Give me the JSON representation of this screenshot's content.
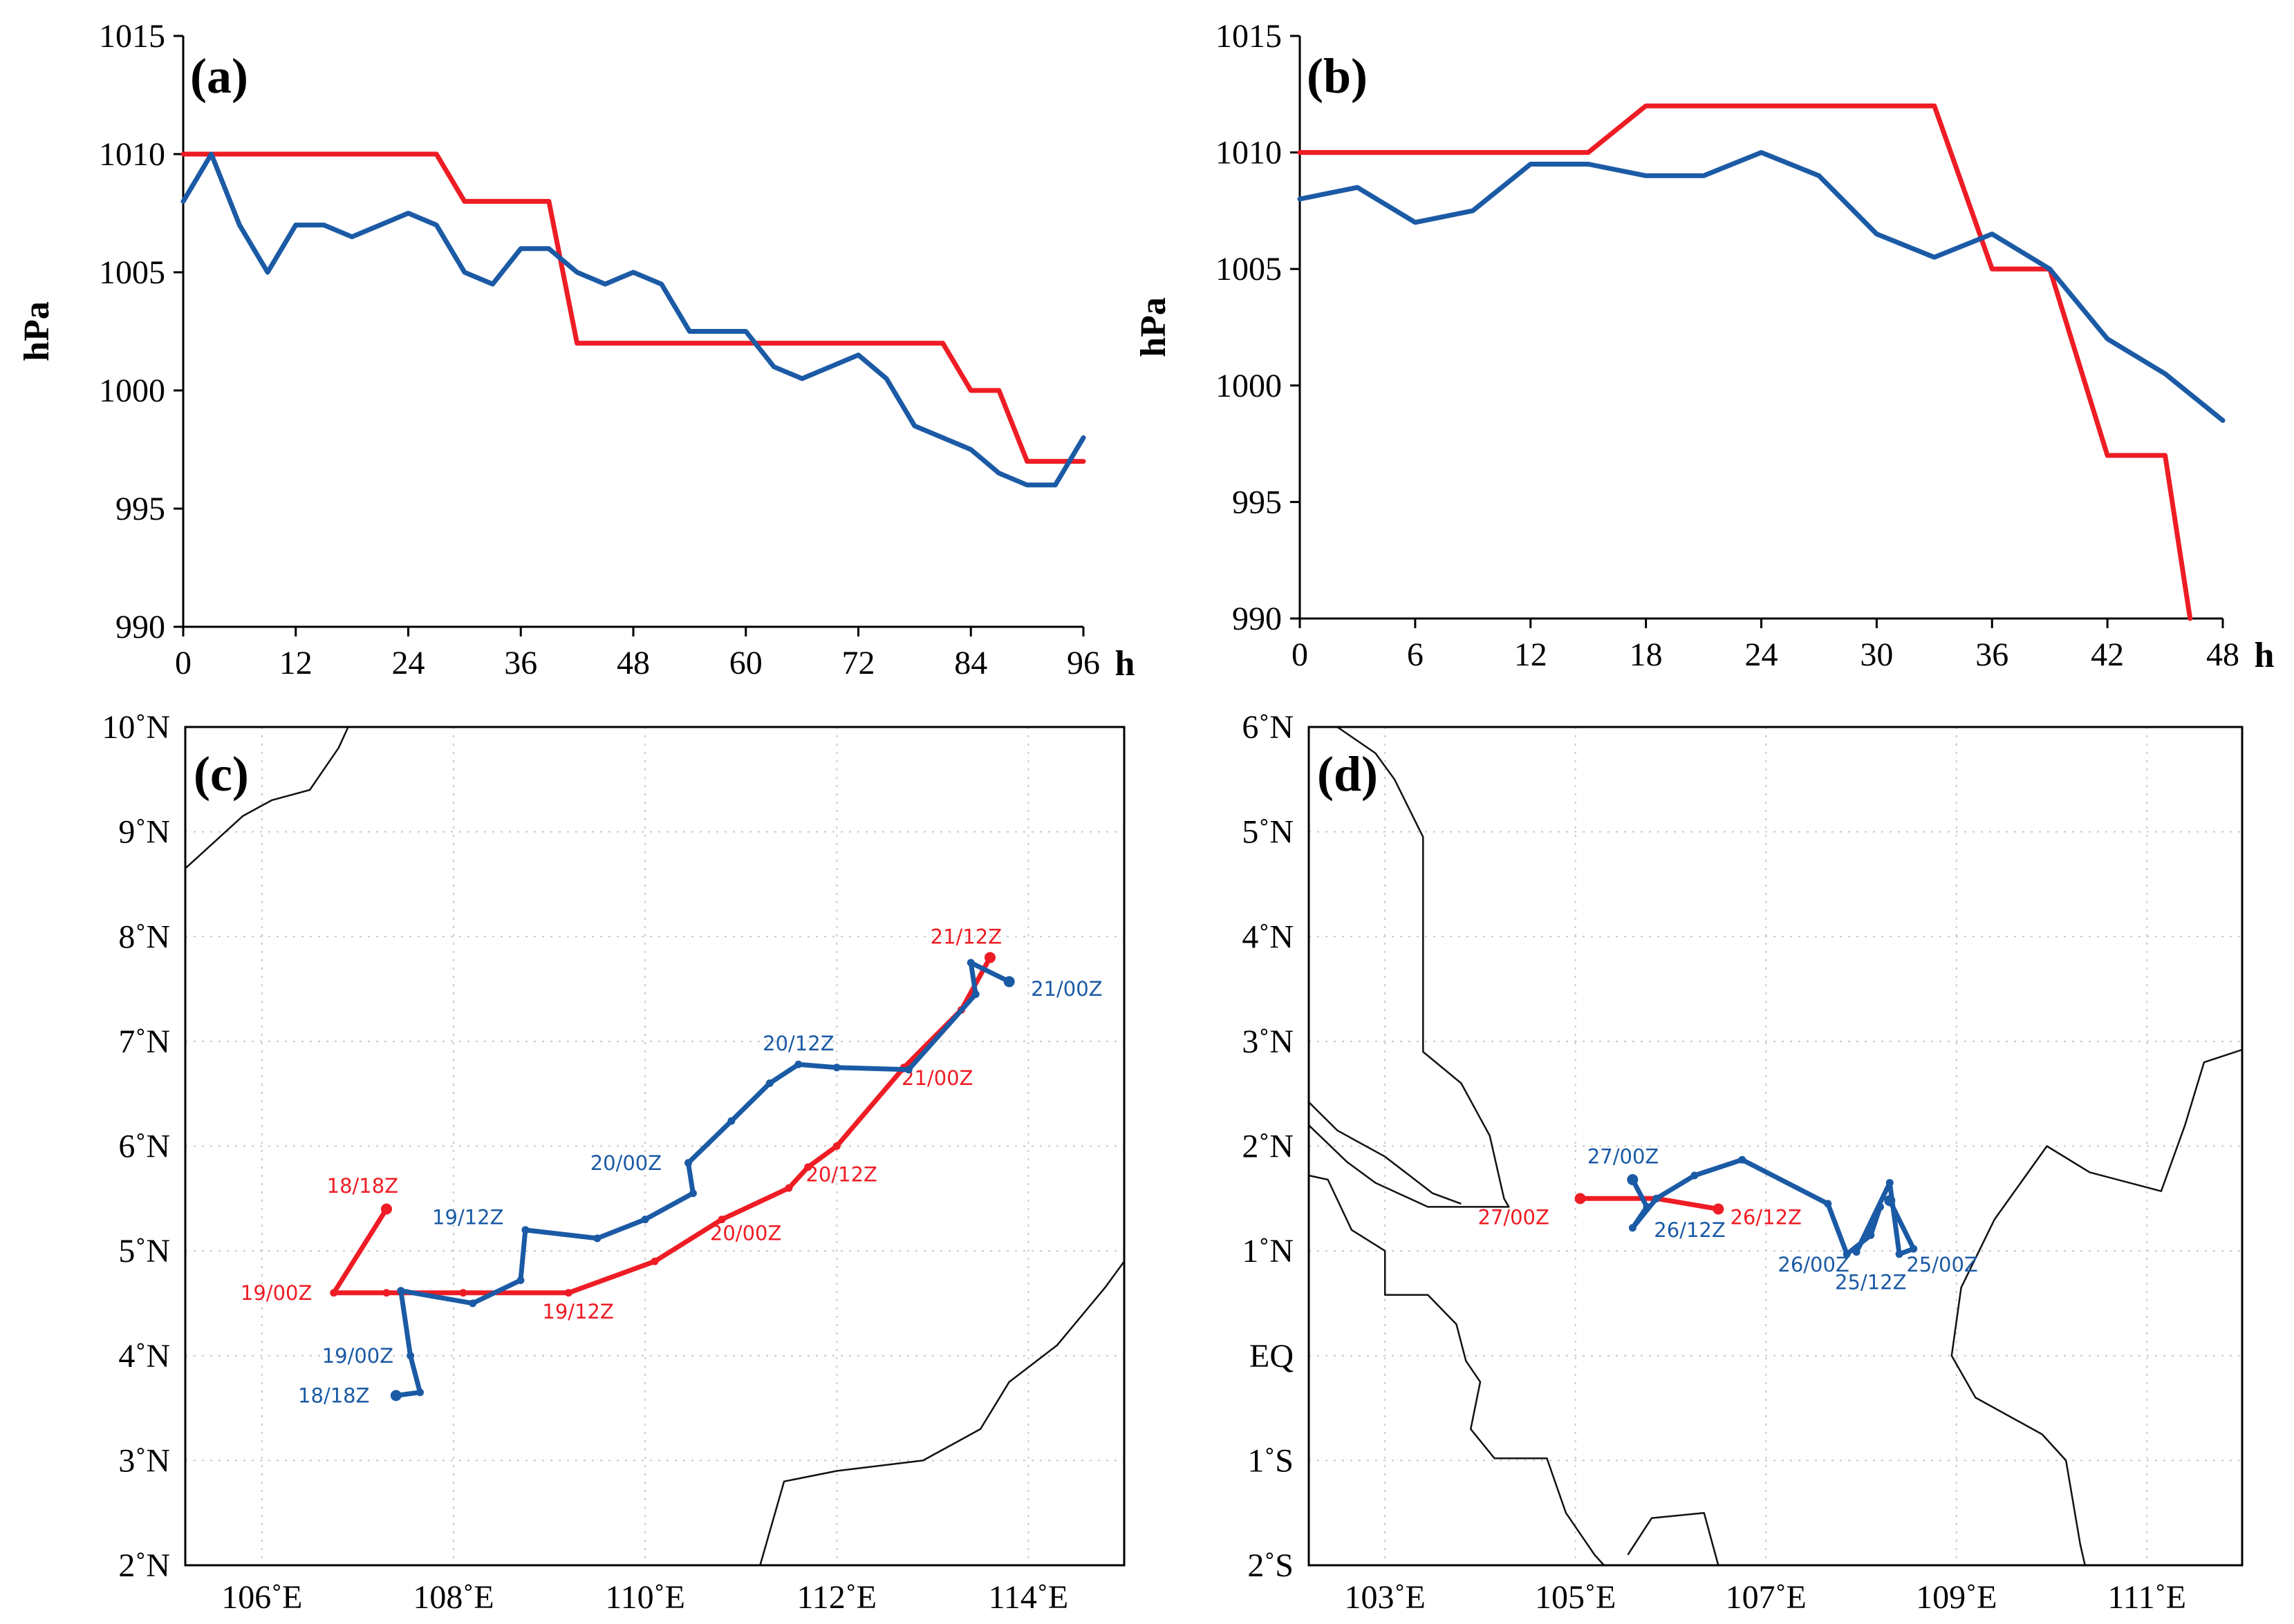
{
  "colors": {
    "red": "#ee1c24",
    "blue": "#1b5aa5",
    "grid": "#c8c8c8",
    "axis": "#000000"
  },
  "chart_data": [
    {
      "panel": "a",
      "type": "line",
      "label": "(a)",
      "ylabel": "hPa",
      "xlabel": "h",
      "xlim": [
        0,
        96
      ],
      "ylim": [
        990,
        1015
      ],
      "xticks": [
        0,
        12,
        24,
        36,
        48,
        60,
        72,
        84,
        96
      ],
      "yticks": [
        990,
        995,
        1000,
        1005,
        1010,
        1015
      ],
      "series": [
        {
          "name": "red",
          "color": "red",
          "x": [
            0,
            27,
            30,
            39,
            42,
            81,
            84,
            87,
            90,
            96
          ],
          "y": [
            1010,
            1010,
            1008,
            1008,
            1002,
            1002,
            1000,
            1000,
            997,
            997
          ]
        },
        {
          "name": "blue",
          "color": "blue",
          "x": [
            0,
            3,
            6,
            9,
            12,
            15,
            18,
            21,
            24,
            27,
            30,
            33,
            36,
            39,
            42,
            45,
            48,
            51,
            54,
            57,
            60,
            63,
            66,
            69,
            72,
            75,
            78,
            81,
            84,
            87,
            90,
            93,
            96
          ],
          "y": [
            1008,
            1010,
            1007,
            1005,
            1007,
            1007,
            1006.5,
            1007,
            1007.5,
            1007,
            1005,
            1004.5,
            1006,
            1006,
            1005,
            1004.5,
            1005,
            1004.5,
            1002.5,
            1002.5,
            1002.5,
            1001,
            1000.5,
            1001,
            1001.5,
            1000.5,
            998.5,
            998,
            997.5,
            996.5,
            996,
            996,
            998
          ]
        }
      ]
    },
    {
      "panel": "b",
      "type": "line",
      "label": "(b)",
      "ylabel": "hPa",
      "xlabel": "h",
      "xlim": [
        0,
        48
      ],
      "ylim": [
        990,
        1015
      ],
      "xticks": [
        0,
        6,
        12,
        18,
        24,
        30,
        36,
        42,
        48
      ],
      "yticks": [
        990,
        995,
        1000,
        1005,
        1010,
        1015
      ],
      "series": [
        {
          "name": "red",
          "color": "red",
          "x": [
            0,
            15,
            18,
            33,
            36,
            39,
            42,
            45,
            46.3
          ],
          "y": [
            1010,
            1010,
            1012,
            1012,
            1005,
            1005,
            997,
            997,
            990
          ]
        },
        {
          "name": "blue",
          "color": "blue",
          "x": [
            0,
            3,
            6,
            9,
            12,
            15,
            18,
            21,
            24,
            27,
            30,
            33,
            36,
            39,
            42,
            45,
            48
          ],
          "y": [
            1008,
            1008.5,
            1007,
            1007.5,
            1009.5,
            1009.5,
            1009,
            1009,
            1010,
            1009,
            1006.5,
            1005.5,
            1006.5,
            1005,
            1002,
            1000.5,
            998.5
          ]
        }
      ]
    },
    {
      "panel": "c",
      "type": "map-track",
      "label": "(c)",
      "lon_range": [
        105.2,
        115
      ],
      "lat_range": [
        2,
        10
      ],
      "xticks": [
        106,
        108,
        110,
        112,
        114
      ],
      "xtick_labels": [
        "106˚E",
        "108˚E",
        "110˚E",
        "112˚E",
        "114˚E"
      ],
      "yticks": [
        2,
        3,
        4,
        5,
        6,
        7,
        8,
        9,
        10
      ],
      "ytick_labels": [
        "2˚N",
        "3˚N",
        "4˚N",
        "5˚N",
        "6˚N",
        "7˚N",
        "8˚N",
        "9˚N",
        "10˚N"
      ],
      "coastlines": [
        [
          [
            105.2,
            8.65
          ],
          [
            105.8,
            9.15
          ],
          [
            106.1,
            9.3
          ],
          [
            106.5,
            9.4
          ],
          [
            106.8,
            9.8
          ],
          [
            106.9,
            10.0
          ]
        ],
        [
          [
            111.2,
            2.0
          ],
          [
            111.45,
            2.8
          ],
          [
            112.0,
            2.9
          ],
          [
            112.9,
            3.0
          ],
          [
            113.5,
            3.3
          ],
          [
            113.8,
            3.75
          ],
          [
            114.3,
            4.1
          ],
          [
            114.8,
            4.65
          ],
          [
            115.0,
            4.9
          ]
        ]
      ],
      "tracks": [
        {
          "name": "red",
          "color": "red",
          "points": [
            [
              107.3,
              5.4
            ],
            [
              106.75,
              4.6
            ],
            [
              107.3,
              4.6
            ],
            [
              108.1,
              4.6
            ],
            [
              109.2,
              4.6
            ],
            [
              110.1,
              4.9
            ],
            [
              110.8,
              5.3
            ],
            [
              111.5,
              5.6
            ],
            [
              111.7,
              5.8
            ],
            [
              112.0,
              6.0
            ],
            [
              112.7,
              6.75
            ],
            [
              113.3,
              7.3
            ],
            [
              113.6,
              7.8
            ]
          ],
          "labels": [
            {
              "text": "18/18Z",
              "lon": 107.05,
              "lat": 5.62
            },
            {
              "text": "19/00Z",
              "lon": 106.15,
              "lat": 4.6
            },
            {
              "text": "19/12Z",
              "lon": 109.3,
              "lat": 4.42
            },
            {
              "text": "20/00Z",
              "lon": 111.05,
              "lat": 5.17
            },
            {
              "text": "20/12Z",
              "lon": 112.05,
              "lat": 5.73
            },
            {
              "text": "21/00Z",
              "lon": 113.05,
              "lat": 6.65
            },
            {
              "text": "21/12Z",
              "lon": 113.35,
              "lat": 8.0
            }
          ]
        },
        {
          "name": "blue",
          "color": "blue",
          "points": [
            [
              107.4,
              3.62
            ],
            [
              107.65,
              3.65
            ],
            [
              107.55,
              4.0
            ],
            [
              107.45,
              4.62
            ],
            [
              108.2,
              4.5
            ],
            [
              108.7,
              4.72
            ],
            [
              108.75,
              5.2
            ],
            [
              109.5,
              5.12
            ],
            [
              110.0,
              5.3
            ],
            [
              110.5,
              5.55
            ],
            [
              110.45,
              5.84
            ],
            [
              110.9,
              6.24
            ],
            [
              111.3,
              6.6
            ],
            [
              111.6,
              6.78
            ],
            [
              112.0,
              6.75
            ],
            [
              112.75,
              6.73
            ],
            [
              113.45,
              7.45
            ],
            [
              113.4,
              7.75
            ],
            [
              113.8,
              7.57
            ]
          ],
          "labels": [
            {
              "text": "18/18Z",
              "lon": 106.75,
              "lat": 3.62
            },
            {
              "text": "19/00Z",
              "lon": 107.0,
              "lat": 4.0
            },
            {
              "text": "19/12Z",
              "lon": 108.15,
              "lat": 5.32
            },
            {
              "text": "20/00Z",
              "lon": 109.8,
              "lat": 5.84
            },
            {
              "text": "20/12Z",
              "lon": 111.6,
              "lat": 6.98
            },
            {
              "text": "21/00Z",
              "lon": 114.4,
              "lat": 7.5
            }
          ]
        }
      ]
    },
    {
      "panel": "d",
      "type": "map-track",
      "label": "(d)",
      "lon_range": [
        102.2,
        112
      ],
      "lat_range": [
        -2,
        6
      ],
      "xticks": [
        103,
        105,
        107,
        109,
        111
      ],
      "xtick_labels": [
        "103˚E",
        "105˚E",
        "107˚E",
        "109˚E",
        "111˚E"
      ],
      "yticks": [
        -2,
        -1,
        0,
        1,
        2,
        3,
        4,
        5,
        6
      ],
      "ytick_labels": [
        "2˚S",
        "1˚S",
        "EQ",
        "1˚N",
        "2˚N",
        "3˚N",
        "4˚N",
        "5˚N",
        "6˚N"
      ],
      "coastlines": [
        [
          [
            102.5,
            6.0
          ],
          [
            102.9,
            5.75
          ],
          [
            103.1,
            5.5
          ],
          [
            103.4,
            4.95
          ],
          [
            103.4,
            2.9
          ],
          [
            103.8,
            2.6
          ],
          [
            104.1,
            2.1
          ],
          [
            104.25,
            1.5
          ],
          [
            104.3,
            1.42
          ],
          [
            103.45,
            1.42
          ],
          [
            102.9,
            1.65
          ],
          [
            102.6,
            1.85
          ],
          [
            102.2,
            2.2
          ]
        ],
        [
          [
            102.2,
            2.42
          ],
          [
            102.5,
            2.15
          ],
          [
            103.0,
            1.9
          ],
          [
            103.5,
            1.55
          ],
          [
            103.8,
            1.45
          ]
        ],
        [
          [
            102.2,
            1.72
          ],
          [
            102.4,
            1.68
          ],
          [
            102.65,
            1.2
          ],
          [
            103.0,
            1.0
          ],
          [
            103.0,
            0.58
          ],
          [
            103.45,
            0.58
          ],
          [
            103.75,
            0.3
          ],
          [
            103.85,
            -0.05
          ],
          [
            104.0,
            -0.25
          ],
          [
            103.9,
            -0.7
          ],
          [
            104.15,
            -0.98
          ],
          [
            104.7,
            -0.98
          ],
          [
            104.9,
            -1.5
          ],
          [
            105.2,
            -1.9
          ],
          [
            105.3,
            -2.0
          ]
        ],
        [
          [
            105.55,
            -1.9
          ],
          [
            105.8,
            -1.55
          ],
          [
            106.35,
            -1.5
          ],
          [
            106.5,
            -2.0
          ]
        ],
        [
          [
            112.0,
            2.92
          ],
          [
            111.6,
            2.8
          ],
          [
            111.4,
            2.2
          ],
          [
            111.15,
            1.57
          ],
          [
            110.4,
            1.75
          ],
          [
            109.95,
            2.0
          ],
          [
            109.4,
            1.3
          ],
          [
            109.05,
            0.65
          ],
          [
            108.95,
            0.0
          ],
          [
            109.2,
            -0.4
          ],
          [
            109.9,
            -0.75
          ],
          [
            110.15,
            -1.0
          ],
          [
            110.3,
            -1.8
          ],
          [
            110.35,
            -2.0
          ]
        ]
      ],
      "tracks": [
        {
          "name": "red",
          "color": "red",
          "points": [
            [
              105.05,
              1.5
            ],
            [
              105.85,
              1.5
            ],
            [
              106.5,
              1.4
            ]
          ],
          "labels": [
            {
              "text": "27/00Z",
              "lon": 104.35,
              "lat": 1.32
            },
            {
              "text": "26/12Z",
              "lon": 107.0,
              "lat": 1.32
            }
          ]
        },
        {
          "name": "blue",
          "color": "blue",
          "points": [
            [
              105.6,
              1.68
            ],
            [
              105.75,
              1.42
            ],
            [
              105.6,
              1.22
            ],
            [
              105.85,
              1.5
            ],
            [
              106.25,
              1.72
            ],
            [
              106.75,
              1.87
            ],
            [
              107.65,
              1.45
            ],
            [
              107.85,
              0.97
            ],
            [
              108.1,
              1.15
            ],
            [
              108.2,
              1.42
            ],
            [
              107.95,
              0.99
            ],
            [
              108.3,
              1.65
            ],
            [
              108.4,
              0.97
            ],
            [
              108.55,
              1.02
            ],
            [
              108.3,
              1.48
            ]
          ],
          "labels": [
            {
              "text": "27/00Z",
              "lon": 105.5,
              "lat": 1.9
            },
            {
              "text": "26/12Z",
              "lon": 106.2,
              "lat": 1.2
            },
            {
              "text": "26/00Z",
              "lon": 107.5,
              "lat": 0.87
            },
            {
              "text": "25/12Z",
              "lon": 108.1,
              "lat": 0.7
            },
            {
              "text": "25/00Z",
              "lon": 108.85,
              "lat": 0.87
            }
          ]
        }
      ]
    }
  ]
}
